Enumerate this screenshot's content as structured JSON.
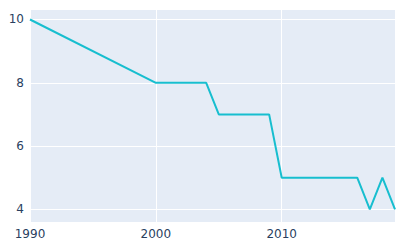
{
  "chart_data": {
    "type": "line",
    "x": [
      1990,
      2000,
      2004,
      2005,
      2009,
      2010,
      2016,
      2017,
      2018,
      2019
    ],
    "values": [
      10,
      8,
      8,
      7,
      7,
      5,
      5,
      4,
      5,
      4
    ],
    "color": "#17becf",
    "xlim": [
      1990,
      2019
    ],
    "xticks": [
      1990,
      2000,
      2010
    ],
    "ylim": [
      3.6,
      10.3
    ],
    "yticks": [
      4,
      6,
      8,
      10
    ],
    "grid": true
  }
}
